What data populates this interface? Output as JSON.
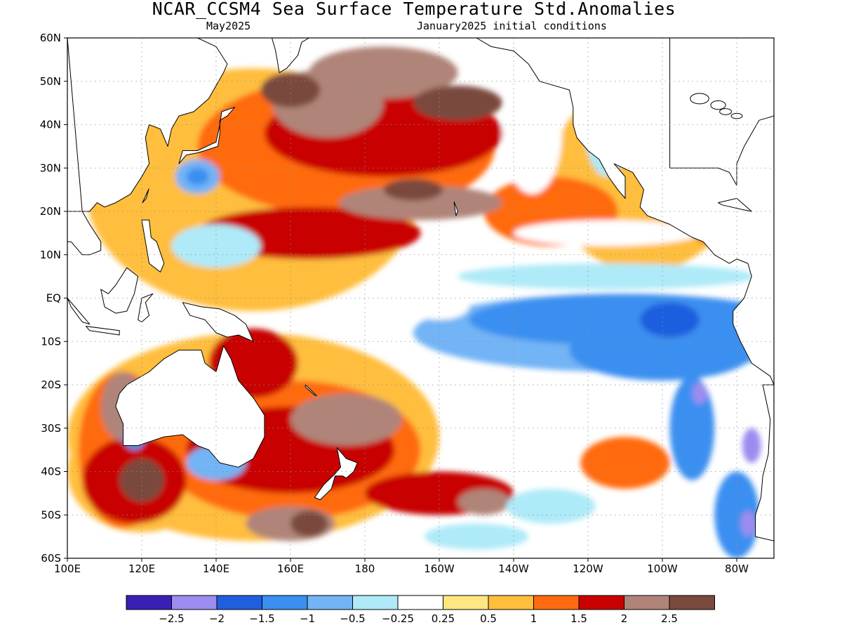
{
  "title": "NCAR_CCSM4 Sea Surface Temperature Std.Anomalies",
  "subtitle_left": "May2025",
  "subtitle_right": "January2025 initial conditions",
  "map": {
    "lat_range": [
      -60,
      60
    ],
    "lon_range": [
      100,
      290
    ],
    "lat_ticks": [
      "60N",
      "50N",
      "40N",
      "30N",
      "20N",
      "10N",
      "EQ",
      "10S",
      "20S",
      "30S",
      "40S",
      "50S",
      "60S"
    ],
    "lon_ticks": [
      "100E",
      "120E",
      "140E",
      "160E",
      "180",
      "160W",
      "140W",
      "120W",
      "100W",
      "80W"
    ],
    "grid": true
  },
  "colorbar": {
    "colors": [
      "#3a1fb5",
      "#9c8cf0",
      "#1f5fde",
      "#3a8ff0",
      "#72b4f5",
      "#aeeaf8",
      "#ffffff",
      "#ffe680",
      "#ffbe3c",
      "#ff6a10",
      "#c80000",
      "#b08478",
      "#7a4a3e"
    ],
    "labels": [
      "−2.5",
      "−2",
      "−1.5",
      "−1",
      "−0.5",
      "−0.25",
      "0.25",
      "0.5",
      "1",
      "1.5",
      "2",
      "2.5"
    ]
  }
}
